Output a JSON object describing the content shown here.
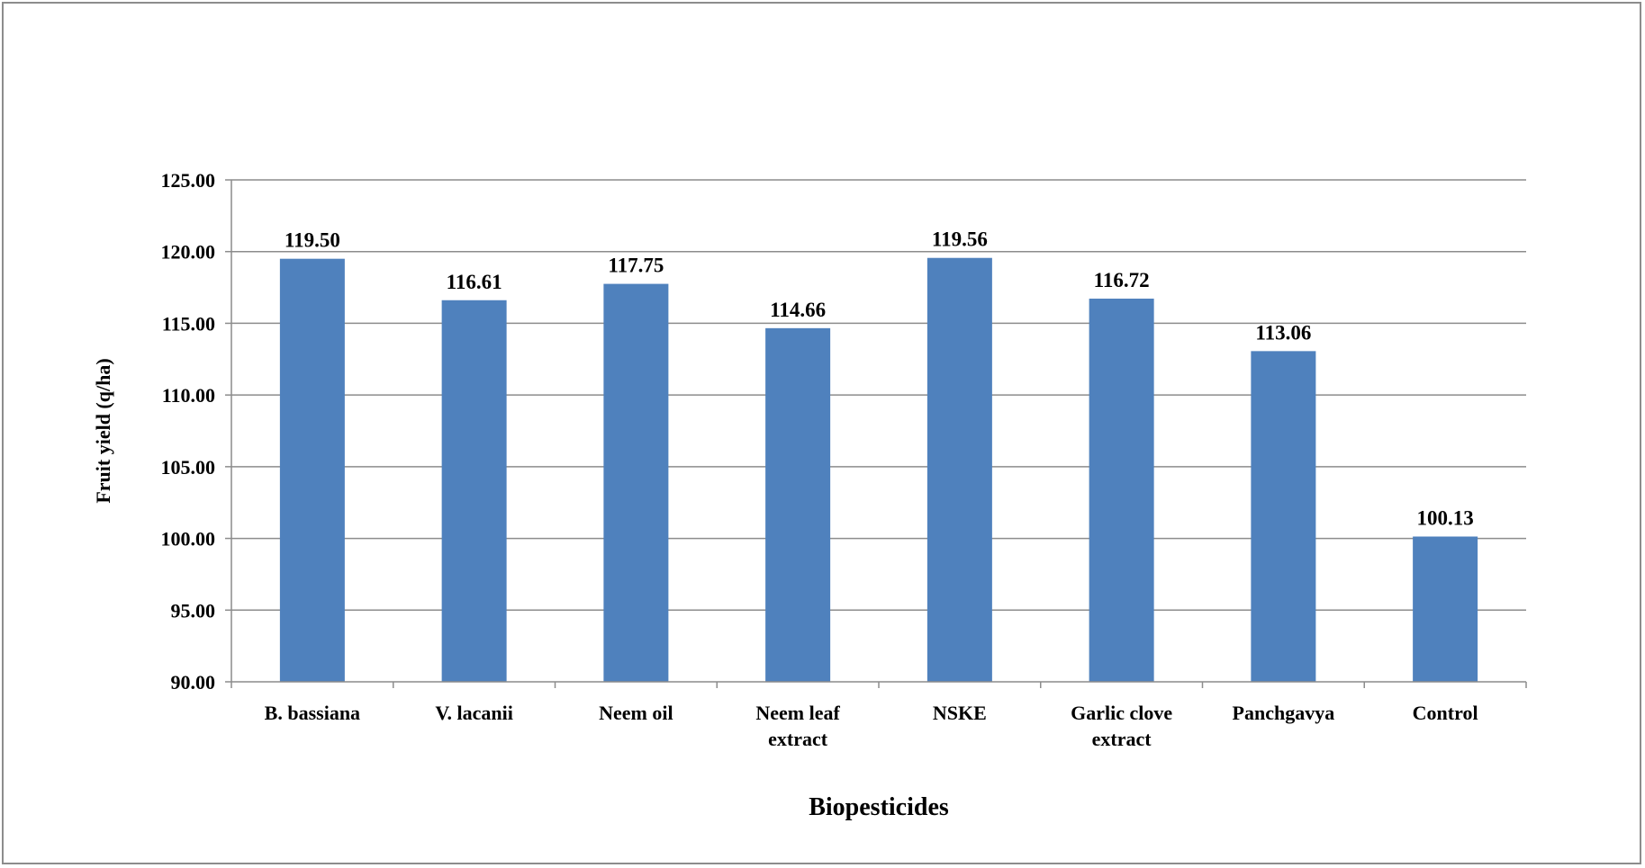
{
  "chart_data": {
    "type": "bar",
    "title": "",
    "xlabel": "Biopesticides",
    "ylabel": "Fruit yield (q/ha)",
    "ylim": [
      90,
      125
    ],
    "yticks": [
      "90.00",
      "95.00",
      "100.00",
      "105.00",
      "110.00",
      "115.00",
      "120.00",
      "125.00"
    ],
    "categories": [
      [
        "B. bassiana"
      ],
      [
        "V. lacanii"
      ],
      [
        "Neem oil"
      ],
      [
        "Neem leaf",
        "extract"
      ],
      [
        "NSKE"
      ],
      [
        "Garlic clove",
        "extract"
      ],
      [
        "Panchgavya"
      ],
      [
        "Control"
      ]
    ],
    "values": [
      119.5,
      116.61,
      117.75,
      114.66,
      119.56,
      116.72,
      113.06,
      100.13
    ],
    "value_labels": [
      "119.50",
      "116.61",
      "117.75",
      "114.66",
      "119.56",
      "116.72",
      "113.06",
      "100.13"
    ],
    "grid": true,
    "legend": "none",
    "colors": {
      "bar": "#4f81bd",
      "grid": "#8c8c8c",
      "axis": "#8c8c8c"
    }
  }
}
